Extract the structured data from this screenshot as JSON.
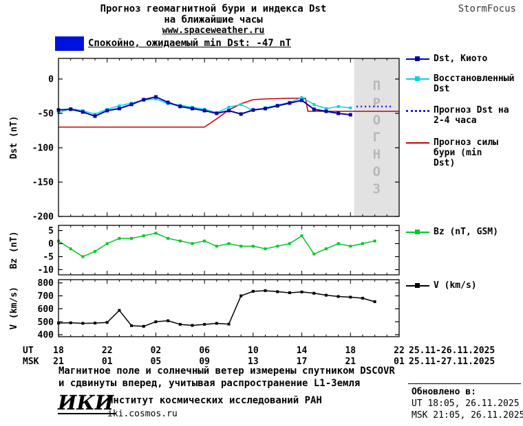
{
  "header": {
    "title_line1": "Прогноз геомагнитной бури и индекса Dst",
    "title_line2": "на ближайшие часы",
    "website": "www.spaceweather.ru",
    "brand": "StormFocus"
  },
  "status": {
    "label": "Спокойно, ожидаемый min Dst: -47 nT",
    "box_color": "#0011dd"
  },
  "forecast_band": {
    "label": "ПРОГНОЗ",
    "fill": "#e2e2e2",
    "text_color": "#b8b8b8"
  },
  "xaxis": {
    "ut_label": "UT",
    "msk_label": "MSK",
    "ut_ticks": [
      "18",
      "22",
      "02",
      "06",
      "10",
      "14",
      "18",
      "22"
    ],
    "msk_ticks": [
      "21",
      "01",
      "05",
      "09",
      "13",
      "17",
      "21",
      "01"
    ],
    "ut_date_range": "25.11-26.11.2025",
    "msk_date_range": "25.11-27.11.2025"
  },
  "chart_data": [
    {
      "type": "line",
      "ylabel": "Dst (nT)",
      "ylim": [
        -200,
        30
      ],
      "yticks": [
        0,
        -50,
        -100,
        -150,
        -200
      ],
      "xlim": [
        0,
        28
      ],
      "x_major_every": 4,
      "forecast_band_x": [
        24.3,
        28
      ],
      "series": [
        {
          "name": "Dst, Киото",
          "color": "#0000a8",
          "marker": true,
          "msize": 5,
          "width": 2,
          "x": [
            0,
            1,
            2,
            3,
            4,
            5,
            6,
            7,
            8,
            9,
            10,
            11,
            12,
            13,
            14,
            15,
            16,
            17,
            18,
            19,
            20,
            21,
            22,
            23,
            24
          ],
          "y": [
            -45,
            -44,
            -48,
            -54,
            -46,
            -43,
            -37,
            -30,
            -26,
            -34,
            -40,
            -43,
            -46,
            -50,
            -46,
            -51,
            -45,
            -43,
            -39,
            -35,
            -31,
            -44,
            -47,
            -50,
            -52
          ]
        },
        {
          "name": "Восстановленный Dst",
          "color": "#00d2e8",
          "marker": true,
          "msize": 4,
          "width": 1.5,
          "x": [
            0,
            1,
            2,
            3,
            4,
            5,
            6,
            7,
            8,
            9,
            10,
            11,
            12,
            13,
            14,
            15,
            16,
            17,
            18,
            19,
            20,
            21,
            22,
            23,
            24
          ],
          "y": [
            -49,
            -43,
            -46,
            -51,
            -44,
            -39,
            -35,
            -31,
            -29,
            -36,
            -38,
            -41,
            -44,
            -49,
            -41,
            -37,
            -46,
            -42,
            -38,
            -34,
            -27,
            -37,
            -43,
            -40,
            -42
          ]
        },
        {
          "name": "Прогноз Dst на 2-4 часа",
          "color": "#2020ff",
          "marker": false,
          "width": 2.5,
          "dash": "2,4",
          "x": [
            24.5,
            25,
            25.5,
            26,
            26.5,
            27,
            27.5
          ],
          "y": [
            -40,
            -40,
            -40,
            -40,
            -40,
            -40,
            -40
          ]
        },
        {
          "name": "Прогноз силы бури (min Dst)",
          "color": "#cc0000",
          "marker": false,
          "width": 1.6,
          "x": [
            0,
            12,
            13,
            14,
            15,
            16,
            17,
            19,
            20.3,
            20.5,
            28
          ],
          "y": [
            -70,
            -70,
            -58,
            -45,
            -36,
            -30,
            -29,
            -28,
            -28,
            -47,
            -47
          ]
        }
      ]
    },
    {
      "type": "line",
      "ylabel": "Bz (nT)",
      "ylim": [
        -12,
        7
      ],
      "yticks": [
        5,
        0,
        -5,
        -10
      ],
      "xlim": [
        0,
        28
      ],
      "x_major_every": 4,
      "series": [
        {
          "name": "Bz (nT, GSM)",
          "color": "#00c822",
          "marker": true,
          "msize": 4,
          "width": 1.5,
          "x": [
            0,
            1,
            2,
            3,
            4,
            5,
            6,
            7,
            8,
            9,
            10,
            11,
            12,
            13,
            14,
            15,
            16,
            17,
            18,
            19,
            20,
            21,
            22,
            23,
            24,
            25,
            26
          ],
          "y": [
            1,
            -2,
            -5,
            -3,
            0,
            2,
            2,
            3,
            4,
            2,
            1,
            0,
            1,
            -1,
            0,
            -1,
            -1,
            -2,
            -1,
            0,
            3,
            -4,
            -2,
            0,
            -1,
            0,
            1
          ]
        }
      ]
    },
    {
      "type": "line",
      "ylabel": "V (km/s)",
      "ylim": [
        385,
        825
      ],
      "yticks": [
        800,
        700,
        600,
        500,
        400
      ],
      "xlim": [
        0,
        28
      ],
      "x_major_every": 4,
      "series": [
        {
          "name": "V (km/s)",
          "color": "#000000",
          "marker": true,
          "msize": 4,
          "width": 1.5,
          "x": [
            0,
            1,
            2,
            3,
            4,
            5,
            6,
            7,
            8,
            9,
            10,
            11,
            12,
            13,
            14,
            15,
            16,
            17,
            18,
            19,
            20,
            21,
            22,
            23,
            24,
            25,
            26
          ],
          "y": [
            490,
            492,
            488,
            490,
            495,
            588,
            470,
            465,
            500,
            508,
            480,
            472,
            480,
            488,
            482,
            700,
            735,
            740,
            732,
            724,
            730,
            720,
            705,
            695,
            690,
            682,
            655
          ]
        }
      ]
    }
  ],
  "footer": {
    "note_line1": "Магнитное поле и солнечный ветер измерены спутником DSCOVR",
    "note_line2": "и сдвинуты вперед, учитывая распространение L1-Земля",
    "logo": "ИКИ",
    "institute": "Институт космических исследований РАН",
    "institute_site": "iki.cosmos.ru",
    "updated_label": "Обновлено в:",
    "updated_ut": "UT 18:05, 26.11.2025",
    "updated_msk": "MSK 21:05, 26.11.2025"
  }
}
